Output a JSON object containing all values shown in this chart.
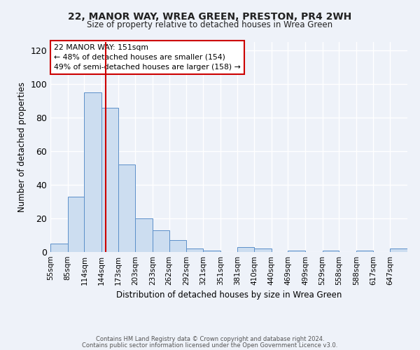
{
  "title1": "22, MANOR WAY, WREA GREEN, PRESTON, PR4 2WH",
  "title2": "Size of property relative to detached houses in Wrea Green",
  "xlabel": "Distribution of detached houses by size in Wrea Green",
  "ylabel": "Number of detached properties",
  "bin_edges": [
    55,
    85,
    114,
    144,
    173,
    203,
    233,
    262,
    292,
    321,
    351,
    381,
    410,
    440,
    469,
    499,
    529,
    558,
    588,
    617,
    647
  ],
  "bar_heights": [
    5,
    33,
    95,
    86,
    52,
    20,
    13,
    7,
    2,
    1,
    0,
    3,
    2,
    0,
    1,
    0,
    1,
    0,
    1,
    0,
    2
  ],
  "bar_color": "#ccddf0",
  "bar_edge_color": "#5b8fc9",
  "vline_x": 151,
  "vline_color": "#cc0000",
  "annotation_text": "22 MANOR WAY: 151sqm\n← 48% of detached houses are smaller (154)\n49% of semi-detached houses are larger (158) →",
  "annotation_box_color": "#ffffff",
  "annotation_box_edge": "#cc0000",
  "background_color": "#eef2f9",
  "grid_color": "#ffffff",
  "ylim": [
    0,
    125
  ],
  "yticks": [
    0,
    20,
    40,
    60,
    80,
    100,
    120
  ],
  "footer1": "Contains HM Land Registry data © Crown copyright and database right 2024.",
  "footer2": "Contains public sector information licensed under the Open Government Licence v3.0."
}
